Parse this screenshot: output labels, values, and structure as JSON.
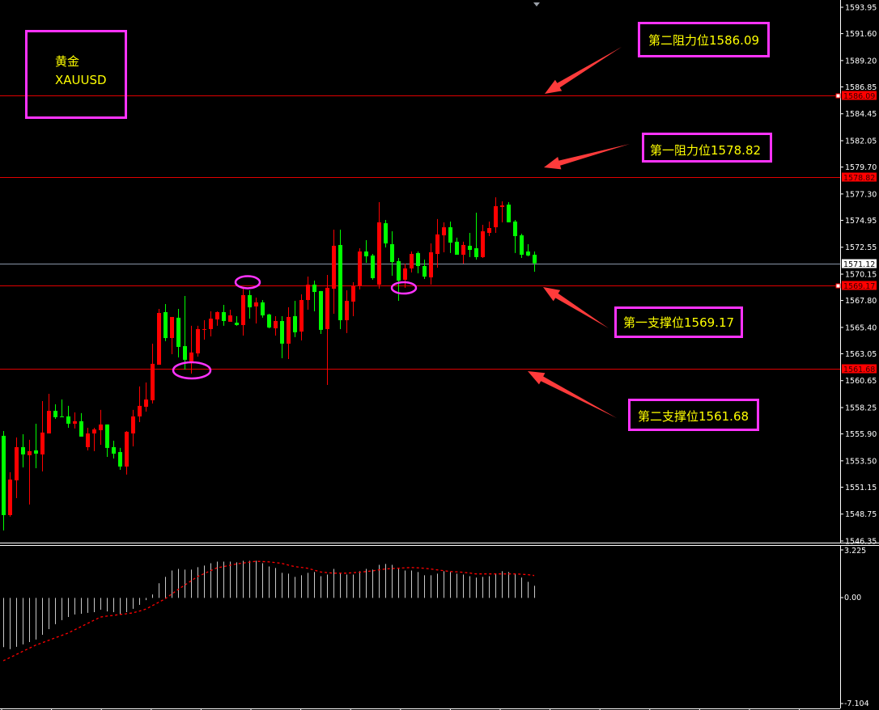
{
  "symbol_box": {
    "name_cn": "黄金",
    "symbol": "XAUUSD"
  },
  "annotations": [
    {
      "label": "第二阻力位1586.09",
      "price": 1586.09,
      "kind": "resistance"
    },
    {
      "label": "第一阻力位1578.82",
      "price": 1578.82,
      "kind": "resistance"
    },
    {
      "label": "第一支撑位1569.17",
      "price": 1569.17,
      "kind": "support"
    },
    {
      "label": "第二支撑位1561.68",
      "price": 1561.68,
      "kind": "support"
    }
  ],
  "price_axis": {
    "ticks": [
      "1593.95",
      "1591.60",
      "1589.20",
      "1586.85",
      "1584.45",
      "1582.05",
      "1579.70",
      "1577.30",
      "1574.95",
      "1572.55",
      "1570.15",
      "1567.80",
      "1565.40",
      "1563.05",
      "1560.65",
      "1558.25",
      "1555.90",
      "1553.50",
      "1551.15",
      "1548.75",
      "1546.35"
    ],
    "level_tags": [
      {
        "text": "1586.09",
        "price": 1586.09
      },
      {
        "text": "1578.82",
        "price": 1578.82
      },
      {
        "text": "1569.17",
        "price": 1569.17
      },
      {
        "text": "1561.68",
        "price": 1561.68
      }
    ],
    "bid_tag": {
      "text": "1571.12",
      "price": 1571.12
    }
  },
  "macd_axis": {
    "ticks": [
      "3.225",
      "0.00",
      "-7.104"
    ]
  },
  "colors": {
    "up": "#ff0000",
    "down": "#00ff00",
    "annotation_box": "#ff33ff",
    "annotation_text": "#ffff00",
    "arrow": "#ff3b3b",
    "level_line": "#e00000",
    "bid_line": "#8a96a8",
    "signal": "#ff0000",
    "histogram": "#c8c8c8"
  },
  "chart_data": [
    {
      "type": "candlestick",
      "ylim": [
        1546.35,
        1593.95
      ],
      "grid": false,
      "candle_fields": [
        "open",
        "high",
        "low",
        "close"
      ],
      "candles": [
        [
          1555.73,
          1556.16,
          1547.29,
          1548.66
        ],
        [
          1548.66,
          1552.48,
          1548.52,
          1551.83
        ],
        [
          1551.76,
          1555.58,
          1550.17,
          1554.72
        ],
        [
          1554.72,
          1555.87,
          1552.91,
          1554.07
        ],
        [
          1554.0,
          1555.37,
          1549.6,
          1554.36
        ],
        [
          1554.43,
          1556.81,
          1552.84,
          1554.14
        ],
        [
          1554.07,
          1558.83,
          1552.55,
          1556.02
        ],
        [
          1555.94,
          1559.48,
          1555.94,
          1557.96
        ],
        [
          1557.96,
          1558.54,
          1557.24,
          1557.39
        ],
        [
          1557.46,
          1558.97,
          1557.39,
          1557.39
        ],
        [
          1557.46,
          1558.4,
          1556.45,
          1556.81
        ],
        [
          1556.81,
          1557.82,
          1556.38,
          1557.03
        ],
        [
          1557.03,
          1557.75,
          1555.66,
          1555.66
        ],
        [
          1554.72,
          1556.45,
          1554.43,
          1555.94
        ],
        [
          1555.94,
          1556.45,
          1554.36,
          1556.3
        ],
        [
          1556.23,
          1558.04,
          1554.93,
          1556.74
        ],
        [
          1556.74,
          1556.74,
          1553.85,
          1554.65
        ],
        [
          1554.72,
          1555.29,
          1553.71,
          1554.14
        ],
        [
          1554.28,
          1554.65,
          1552.7,
          1552.99
        ],
        [
          1552.99,
          1556.16,
          1552.27,
          1556.09
        ],
        [
          1555.94,
          1558.04,
          1554.79,
          1557.46
        ],
        [
          1557.46,
          1560.13,
          1556.95,
          1558.4
        ],
        [
          1558.32,
          1560.49,
          1557.89,
          1558.97
        ],
        [
          1558.9,
          1563.95,
          1558.61,
          1562.15
        ],
        [
          1562.07,
          1567.05,
          1562.07,
          1566.69
        ],
        [
          1566.76,
          1567.48,
          1564.17,
          1564.45
        ],
        [
          1564.45,
          1566.33,
          1563.01,
          1566.33
        ],
        [
          1566.26,
          1567.05,
          1562.72,
          1563.66
        ],
        [
          1563.73,
          1568.2,
          1561.64,
          1562.51
        ],
        [
          1562.36,
          1565.54,
          1561.28,
          1563.16
        ],
        [
          1563.08,
          1565.54,
          1562.79,
          1565.25
        ],
        [
          1565.18,
          1566.04,
          1564.31,
          1565.25
        ],
        [
          1565.25,
          1566.83,
          1564.6,
          1566.18
        ],
        [
          1566.11,
          1566.83,
          1565.54,
          1566.76
        ],
        [
          1566.76,
          1567.41,
          1565.54,
          1565.97
        ],
        [
          1565.9,
          1566.98,
          1565.9,
          1566.47
        ],
        [
          1565.82,
          1566.4,
          1565.54,
          1565.61
        ],
        [
          1565.61,
          1569.0,
          1564.67,
          1568.28
        ],
        [
          1568.28,
          1568.71,
          1566.18,
          1567.19
        ],
        [
          1567.27,
          1568.06,
          1565.75,
          1567.63
        ],
        [
          1567.63,
          1567.84,
          1566.26,
          1566.47
        ],
        [
          1566.55,
          1566.62,
          1565.32,
          1565.39
        ],
        [
          1565.32,
          1566.4,
          1564.67,
          1565.97
        ],
        [
          1565.97,
          1566.4,
          1562.65,
          1563.95
        ],
        [
          1563.95,
          1567.19,
          1562.58,
          1566.33
        ],
        [
          1566.4,
          1567.77,
          1564.53,
          1564.96
        ],
        [
          1565.03,
          1568.35,
          1564.24,
          1567.84
        ],
        [
          1567.84,
          1569.93,
          1566.98,
          1569.21
        ],
        [
          1569.21,
          1569.57,
          1566.83,
          1568.56
        ],
        [
          1568.64,
          1568.64,
          1564.81,
          1565.18
        ],
        [
          1565.25,
          1570.08,
          1560.27,
          1568.93
        ],
        [
          1568.85,
          1574.12,
          1566.62,
          1572.68
        ],
        [
          1572.75,
          1574.12,
          1565.25,
          1566.04
        ],
        [
          1566.04,
          1568.71,
          1564.89,
          1567.77
        ],
        [
          1567.7,
          1569.43,
          1566.4,
          1569.07
        ],
        [
          1569.14,
          1572.46,
          1568.78,
          1572.17
        ],
        [
          1572.17,
          1573.18,
          1571.16,
          1571.74
        ],
        [
          1571.81,
          1571.95,
          1569.65,
          1569.79
        ],
        [
          1569.21,
          1576.57,
          1568.85,
          1574.77
        ],
        [
          1574.69,
          1574.98,
          1572.53,
          1572.89
        ],
        [
          1572.82,
          1573.97,
          1570.01,
          1571.23
        ],
        [
          1571.31,
          1571.59,
          1567.77,
          1569.57
        ],
        [
          1569.65,
          1571.09,
          1568.93,
          1570.66
        ],
        [
          1570.66,
          1572.17,
          1570.3,
          1571.95
        ],
        [
          1572.03,
          1572.17,
          1570.22,
          1570.87
        ],
        [
          1570.87,
          1571.45,
          1569.72,
          1569.93
        ],
        [
          1569.86,
          1572.89,
          1569.21,
          1572.1
        ],
        [
          1571.95,
          1575.06,
          1570.73,
          1573.69
        ],
        [
          1573.61,
          1574.77,
          1572.1,
          1574.33
        ],
        [
          1574.33,
          1574.84,
          1572.03,
          1572.96
        ],
        [
          1573.04,
          1573.4,
          1571.88,
          1571.88
        ],
        [
          1571.88,
          1573.04,
          1571.09,
          1572.75
        ],
        [
          1572.68,
          1573.83,
          1571.67,
          1572.31
        ],
        [
          1572.46,
          1575.63,
          1571.45,
          1571.67
        ],
        [
          1571.67,
          1574.55,
          1571.59,
          1573.97
        ],
        [
          1573.83,
          1574.84,
          1573.54,
          1574.26
        ],
        [
          1574.33,
          1577.0,
          1573.83,
          1576.21
        ],
        [
          1576.14,
          1576.64,
          1574.77,
          1576.28
        ],
        [
          1576.35,
          1576.57,
          1574.77,
          1574.77
        ],
        [
          1574.84,
          1574.98,
          1572.03,
          1573.54
        ],
        [
          1573.61,
          1573.76,
          1571.59,
          1571.88
        ],
        [
          1572.17,
          1572.82,
          1571.74,
          1571.81
        ],
        [
          1571.88,
          1572.17,
          1570.37,
          1571.12
        ]
      ],
      "horizontal_lines": [
        1586.09,
        1578.82,
        1571.12,
        1569.17,
        1561.68
      ]
    },
    {
      "type": "bar",
      "ylim": [
        -7.104,
        3.225
      ],
      "grid": false,
      "histogram": [
        -3.31,
        -3.45,
        -3.29,
        -3.13,
        -2.97,
        -2.8,
        -2.48,
        -2.1,
        -1.77,
        -1.5,
        -1.29,
        -1.12,
        -1.07,
        -1.01,
        -0.96,
        -0.8,
        -0.91,
        -0.96,
        -1.12,
        -0.96,
        -0.74,
        -0.47,
        -0.15,
        0.23,
        0.98,
        1.41,
        1.84,
        1.95,
        1.9,
        1.9,
        2.06,
        2.17,
        2.33,
        2.44,
        2.44,
        2.44,
        2.39,
        2.49,
        2.49,
        2.49,
        2.33,
        2.11,
        2.01,
        1.68,
        1.63,
        1.41,
        1.52,
        1.68,
        1.74,
        1.46,
        1.57,
        1.95,
        1.63,
        1.57,
        1.57,
        1.79,
        1.95,
        1.9,
        2.22,
        2.28,
        2.22,
        1.95,
        1.84,
        1.84,
        1.74,
        1.52,
        1.52,
        1.63,
        1.79,
        1.74,
        1.63,
        1.57,
        1.46,
        1.36,
        1.41,
        1.46,
        1.63,
        1.79,
        1.74,
        1.63,
        1.36,
        1.08,
        0.81
      ],
      "signal": [
        -4.23,
        -4.02,
        -3.81,
        -3.6,
        -3.39,
        -3.18,
        -3.02,
        -2.86,
        -2.69,
        -2.53,
        -2.37,
        -2.15,
        -1.94,
        -1.72,
        -1.51,
        -1.29,
        -1.23,
        -1.18,
        -1.12,
        -1.07,
        -1.01,
        -0.89,
        -0.76,
        -0.53,
        -0.3,
        -0.07,
        0.25,
        0.56,
        0.85,
        1.14,
        1.43,
        1.62,
        1.82,
        2.01,
        2.1,
        2.19,
        2.28,
        2.34,
        2.4,
        2.46,
        2.44,
        2.42,
        2.37,
        2.32,
        2.21,
        2.1,
        2.05,
        1.99,
        1.87,
        1.74,
        1.7,
        1.66,
        1.66,
        1.66,
        1.69,
        1.72,
        1.77,
        1.81,
        1.88,
        1.94,
        1.97,
        1.99,
        2.02,
        2.04,
        2.02,
        1.99,
        1.94,
        1.88,
        1.83,
        1.77,
        1.75,
        1.72,
        1.67,
        1.61,
        1.61,
        1.61,
        1.61,
        1.61,
        1.61,
        1.61,
        1.59,
        1.56,
        1.5
      ]
    }
  ]
}
